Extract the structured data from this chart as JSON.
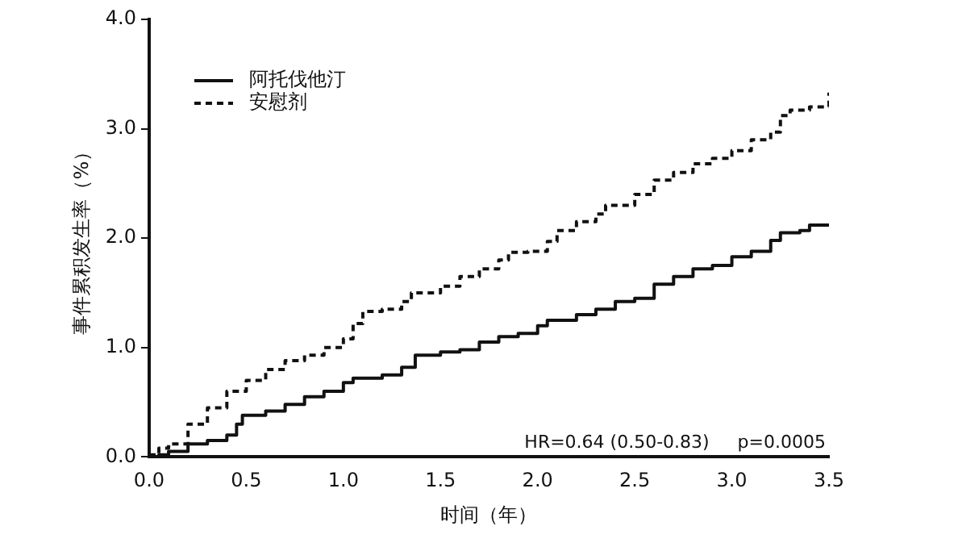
{
  "chart_data": {
    "type": "step",
    "xlabel": "时间（年）",
    "ylabel": "事件累积发生率（%）",
    "xlim": [
      0,
      3.5
    ],
    "xticks": [
      {
        "value": 0,
        "label": "0.0"
      },
      0.5,
      {
        "value": 1,
        "label": "1.0"
      },
      1.5,
      {
        "value": 2,
        "label": "2.0"
      },
      2.5,
      {
        "value": 3,
        "label": "3.0"
      },
      3.5
    ],
    "ylim": [
      0,
      4
    ],
    "yticks": [
      {
        "value": 0,
        "label": "0.0"
      },
      {
        "value": 1,
        "label": "1.0"
      },
      {
        "value": 2,
        "label": "2.0"
      },
      {
        "value": 3,
        "label": "3.0"
      },
      {
        "value": 4,
        "label": "4.0"
      }
    ],
    "legend": "top left",
    "grid": false,
    "annotations": [
      "HR=0.64 (0.50-0.83)     p=0.0005"
    ],
    "series": [
      {
        "name": "阿托伐他汀",
        "color": "#111111",
        "line_style": "solid",
        "x": [
          0,
          0.05,
          0.1,
          0.2,
          0.3,
          0.4,
          0.45,
          0.48,
          0.6,
          0.7,
          0.8,
          0.9,
          1.0,
          1.05,
          1.2,
          1.3,
          1.37,
          1.5,
          1.6,
          1.7,
          1.8,
          1.9,
          2.0,
          2.05,
          2.2,
          2.3,
          2.4,
          2.5,
          2.6,
          2.7,
          2.8,
          2.9,
          3.0,
          3.1,
          3.2,
          3.25,
          3.35,
          3.4,
          3.5
        ],
        "values": [
          0,
          0.02,
          0.05,
          0.12,
          0.15,
          0.2,
          0.3,
          0.38,
          0.42,
          0.48,
          0.55,
          0.6,
          0.68,
          0.72,
          0.75,
          0.82,
          0.93,
          0.96,
          0.98,
          1.05,
          1.1,
          1.13,
          1.2,
          1.25,
          1.3,
          1.35,
          1.42,
          1.45,
          1.58,
          1.65,
          1.72,
          1.75,
          1.83,
          1.88,
          1.98,
          2.05,
          2.07,
          2.12,
          2.12
        ]
      },
      {
        "name": "安慰剂",
        "color": "#111111",
        "line_style": "dashed",
        "x": [
          0,
          0.05,
          0.1,
          0.2,
          0.3,
          0.4,
          0.5,
          0.6,
          0.7,
          0.8,
          0.9,
          1.0,
          1.05,
          1.1,
          1.2,
          1.3,
          1.35,
          1.5,
          1.6,
          1.7,
          1.8,
          1.85,
          1.95,
          2.05,
          2.1,
          2.2,
          2.3,
          2.35,
          2.5,
          2.6,
          2.7,
          2.8,
          2.9,
          3.0,
          3.1,
          3.2,
          3.25,
          3.3,
          3.4,
          3.5
        ],
        "values": [
          0.02,
          0.08,
          0.12,
          0.3,
          0.45,
          0.6,
          0.7,
          0.8,
          0.88,
          0.93,
          1.0,
          1.08,
          1.22,
          1.33,
          1.35,
          1.42,
          1.5,
          1.56,
          1.65,
          1.72,
          1.8,
          1.87,
          1.88,
          1.97,
          2.07,
          2.15,
          2.22,
          2.3,
          2.4,
          2.53,
          2.6,
          2.68,
          2.73,
          2.8,
          2.9,
          2.97,
          3.12,
          3.17,
          3.2,
          3.33
        ]
      }
    ]
  }
}
